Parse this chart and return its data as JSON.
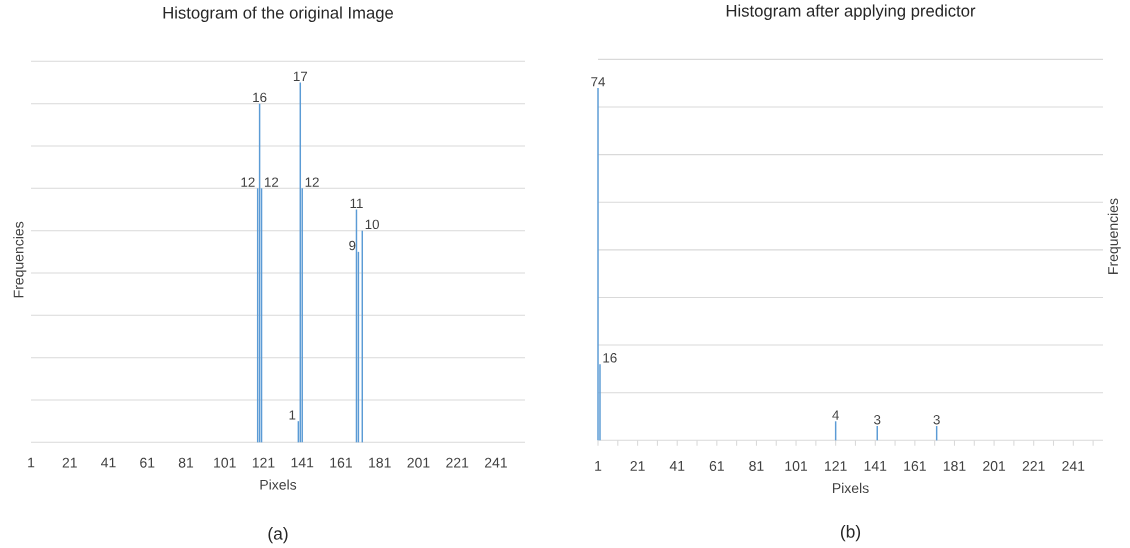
{
  "chart_data": [
    {
      "type": "bar",
      "title": "Histogram of the original Image",
      "xlabel": "Pixels",
      "ylabel": "Frequencies",
      "annotations": [
        "(a)"
      ],
      "x": [
        118,
        119,
        120,
        139,
        140,
        141,
        169,
        170,
        172
      ],
      "values": [
        12,
        16,
        12,
        1,
        17,
        12,
        11,
        9,
        10
      ],
      "color": "#5b9bd5",
      "data_labels": true,
      "xlim": [
        1,
        256
      ],
      "xticks": [
        1,
        21,
        41,
        61,
        81,
        101,
        121,
        141,
        161,
        181,
        201,
        221,
        241
      ],
      "ylim": [
        0,
        18
      ],
      "yticks": [
        {
          "value": 0,
          "label": null
        },
        {
          "value": 2,
          "label": null
        },
        {
          "value": 4,
          "label": null
        },
        {
          "value": 6,
          "label": null
        },
        {
          "value": 8,
          "label": null
        },
        {
          "value": 10,
          "label": null
        },
        {
          "value": 12,
          "label": null
        },
        {
          "value": 14,
          "label": null
        },
        {
          "value": 16,
          "label": null
        },
        {
          "value": 18,
          "label": null
        }
      ],
      "grid": "y",
      "tick_labels": "x"
    },
    {
      "type": "bar",
      "title": "Histogram after applying predictor",
      "xlabel": "Pixels",
      "ylabel": "Frequencies",
      "annotations": [
        "(b)"
      ],
      "x": [
        1,
        2,
        121,
        142,
        172
      ],
      "values": [
        74,
        16,
        4,
        3,
        3
      ],
      "color": "#5b9bd5",
      "data_labels": true,
      "xlim": [
        1,
        256
      ],
      "xticks": [
        1,
        {
          "value": 11,
          "label": null
        },
        21,
        {
          "value": 31,
          "label": null
        },
        41,
        {
          "value": 51,
          "label": null
        },
        61,
        {
          "value": 71,
          "label": null
        },
        81,
        {
          "value": 91,
          "label": null
        },
        101,
        {
          "value": 111,
          "label": null
        },
        121,
        {
          "value": 131,
          "label": null
        },
        141,
        {
          "value": 151,
          "label": null
        },
        161,
        {
          "value": 171,
          "label": null
        },
        181,
        {
          "value": 191,
          "label": null
        },
        201,
        {
          "value": 211,
          "label": null
        },
        221,
        {
          "value": 231,
          "label": null
        },
        241,
        {
          "value": 251,
          "label": null
        }
      ],
      "ylim": [
        0,
        80
      ],
      "yticks": [
        {
          "value": 0,
          "label": null
        },
        {
          "value": 10,
          "label": null
        },
        {
          "value": 20,
          "label": null
        },
        {
          "value": 30,
          "label": null
        },
        {
          "value": 40,
          "label": null
        },
        {
          "value": 50,
          "label": null
        },
        {
          "value": 60,
          "label": null
        },
        {
          "value": 70,
          "label": null
        },
        {
          "value": 80,
          "label": null
        }
      ],
      "grid": "y",
      "tick_labels": "x"
    }
  ]
}
